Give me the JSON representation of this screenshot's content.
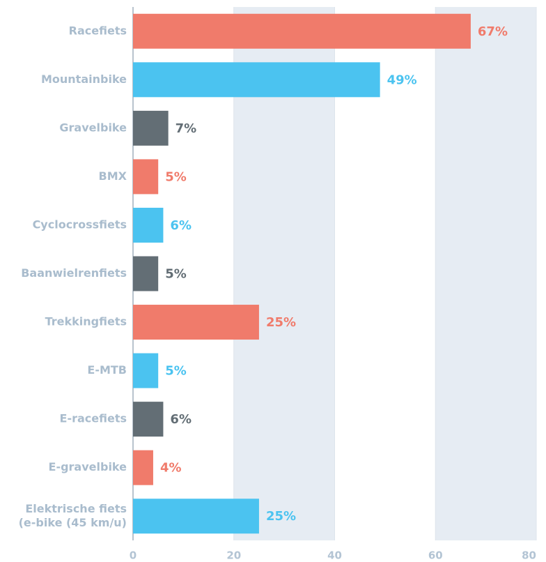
{
  "chart_data": {
    "type": "hbar",
    "categories": [
      "Racefiets",
      "Mountainbike",
      "Gravelbike",
      "BMX",
      "Cyclocrossfiets",
      "Baanwielrenfiets",
      "Trekkingfiets",
      "E-MTB",
      "E-racefiets",
      "E-gravelbike",
      "Elektrische fiets\n(e-bike (45 km/u)"
    ],
    "values": [
      67,
      49,
      7,
      5,
      6,
      5,
      25,
      5,
      6,
      4,
      25
    ],
    "value_labels": [
      "67%",
      "49%",
      "7%",
      "5%",
      "6%",
      "5%",
      "25%",
      "5%",
      "6%",
      "4%",
      "25%"
    ],
    "colors": [
      "#f07b6b",
      "#4bc3f0",
      "#636e75",
      "#f07b6b",
      "#4bc3f0",
      "#636e75",
      "#f07b6b",
      "#4bc3f0",
      "#636e75",
      "#f07b6b",
      "#4bc3f0"
    ],
    "xlim": [
      0,
      80
    ],
    "xticks": [
      0,
      20,
      40,
      60,
      80
    ],
    "grid": true,
    "banded_grid": true,
    "band_color": "#e6ecf3"
  }
}
